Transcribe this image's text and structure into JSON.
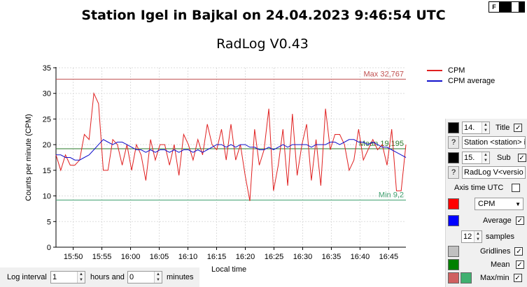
{
  "title": "Station Igel in Bajkal on 24.04.2023 9:46:54 UTC",
  "subtitle": "RadLog V0.43",
  "f_label": "F",
  "chart_data": {
    "type": "line",
    "ylabel": "Counts per minute (CPM)",
    "xlabel": "Local time",
    "ylim": [
      0,
      35
    ],
    "yticks": [
      0,
      5,
      10,
      15,
      20,
      25,
      30,
      35
    ],
    "xlim_minutes": [
      947,
      1008
    ],
    "xticks": [
      "15:50",
      "15:55",
      "16:00",
      "16:05",
      "16:10",
      "16:15",
      "16:20",
      "16:25",
      "16:30",
      "16:35",
      "16:40",
      "16:45"
    ],
    "grid": true,
    "legend": "top-right",
    "series": [
      {
        "name": "CPM",
        "color": "#e02020",
        "values": [
          18,
          15,
          18,
          16,
          16,
          17,
          22,
          21,
          30,
          28,
          15,
          15,
          21,
          20,
          16,
          20,
          15,
          20,
          18,
          13,
          21,
          17,
          20,
          20,
          16,
          20,
          14,
          22,
          20,
          17,
          21,
          18,
          24,
          20,
          19,
          23,
          17,
          24,
          17,
          20,
          14,
          9,
          23,
          16,
          19,
          27,
          11,
          16,
          23,
          12,
          26,
          14,
          20,
          24,
          13,
          21,
          12,
          27,
          19,
          22,
          22,
          20,
          15,
          17,
          23,
          17,
          19,
          21,
          19,
          20,
          16,
          23,
          11,
          11,
          20
        ]
      },
      {
        "name": "CPM average",
        "color": "#1010cc",
        "values": [
          18,
          18,
          17.5,
          17.5,
          17,
          17,
          17.5,
          18,
          19,
          20,
          21,
          20.5,
          20,
          20.5,
          20.5,
          20,
          19.5,
          19,
          19,
          18.5,
          19,
          18.5,
          19,
          19,
          18.5,
          19,
          18.5,
          19,
          19,
          18.5,
          19,
          18.5,
          19,
          19.5,
          20,
          20,
          19.5,
          20,
          19.5,
          20,
          20,
          19.5,
          19.5,
          19,
          19,
          19.5,
          19,
          19.5,
          20,
          19.5,
          20,
          20,
          20,
          20,
          19.5,
          20,
          20,
          20,
          20.5,
          20.5,
          20,
          20.5,
          21,
          21,
          20.5,
          20.5,
          20,
          20.5,
          20,
          19.5,
          19.5,
          19,
          18.5,
          18,
          17.5
        ]
      }
    ],
    "lines": [
      {
        "label": "Max 32,767",
        "value": 32.767,
        "color": "#c05050"
      },
      {
        "label": "Mean 19,195",
        "value": 19.195,
        "color": "#2a7a2a"
      },
      {
        "label": "Min 9,2",
        "value": 9.2,
        "color": "#40a070"
      }
    ]
  },
  "panel": {
    "title_size": "14.",
    "title_label": "Title",
    "title_text": "Station <station> i",
    "sub_size": "15.",
    "sub_label": "Sub",
    "sub_text": "RadLog V<versio",
    "q_label": "?",
    "axis_time_label": "Axis time UTC",
    "series_select": "CPM",
    "average_label": "Average",
    "samples_value": "12",
    "samples_label": "samples",
    "gridlines_label": "Gridlines",
    "mean_label": "Mean",
    "maxmin_label": "Max/min",
    "colors": {
      "title": "#000000",
      "sub": "#000000",
      "cpm": "#ff0000",
      "average": "#0000ff",
      "gridlines": "#c0c0c0",
      "mean": "#008000",
      "max": "#d06060",
      "min": "#40b070"
    }
  },
  "bottom": {
    "log_interval_label": "Log interval",
    "hours_value": "1",
    "hours_label": "hours and",
    "minutes_value": "0",
    "minutes_label": "minutes"
  }
}
